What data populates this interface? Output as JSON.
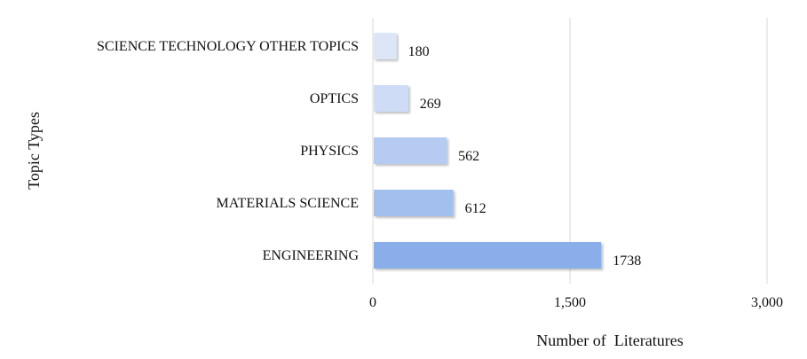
{
  "chart_data": {
    "type": "bar",
    "orientation": "horizontal",
    "categories": [
      "SCIENCE TECHNOLOGY OTHER TOPICS",
      "OPTICS",
      "PHYSICS",
      "MATERIALS SCIENCE",
      "ENGINEERING"
    ],
    "values": [
      180,
      269,
      562,
      612,
      1738
    ],
    "xlabel": "Number of  Literatures",
    "ylabel": "Topic Types",
    "xlim": [
      0,
      3000
    ],
    "xticks": [
      0,
      1500,
      3000
    ],
    "xtick_labels": [
      "0",
      "1,500",
      "3,000"
    ],
    "grid": "vertical",
    "legend": "none",
    "bar_colors": [
      "#dde6f6",
      "#cfdcf5",
      "#b5cbf1",
      "#a3bfee",
      "#8aaee9"
    ]
  }
}
